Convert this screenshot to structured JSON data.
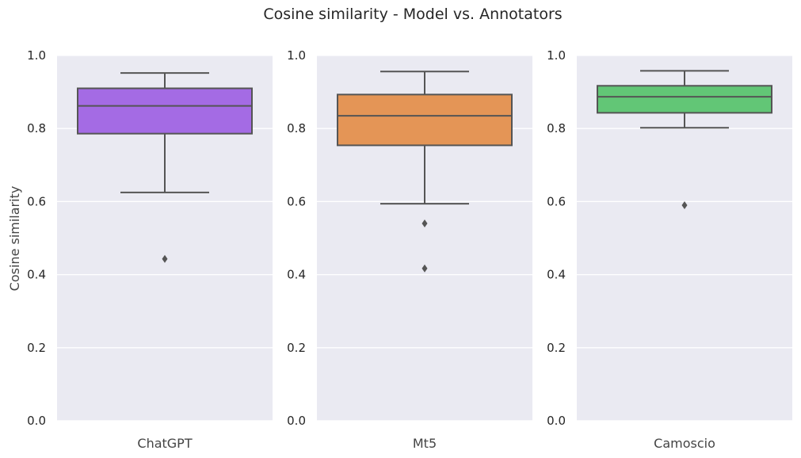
{
  "chart_data": {
    "type": "box",
    "title": "Cosine similarity - Model vs. Annotators",
    "ylabel": "Cosine similarity",
    "ylim": [
      0,
      1
    ],
    "yticks": [
      "0.0",
      "0.2",
      "0.4",
      "0.6",
      "0.8",
      "1.0"
    ],
    "grid": true,
    "panels": [
      {
        "category": "ChatGPT",
        "color": "#a46be4",
        "whisker_low": 0.625,
        "q1": 0.786,
        "median": 0.862,
        "q3": 0.91,
        "whisker_high": 0.952,
        "outliers": [
          0.443
        ]
      },
      {
        "category": "Mt5",
        "color": "#e49556",
        "whisker_low": 0.594,
        "q1": 0.754,
        "median": 0.835,
        "q3": 0.893,
        "whisker_high": 0.956,
        "outliers": [
          0.54,
          0.417
        ]
      },
      {
        "category": "Camoscio",
        "color": "#62c676",
        "whisker_low": 0.802,
        "q1": 0.843,
        "median": 0.887,
        "q3": 0.917,
        "whisker_high": 0.958,
        "outliers": [
          0.59
        ]
      }
    ]
  }
}
